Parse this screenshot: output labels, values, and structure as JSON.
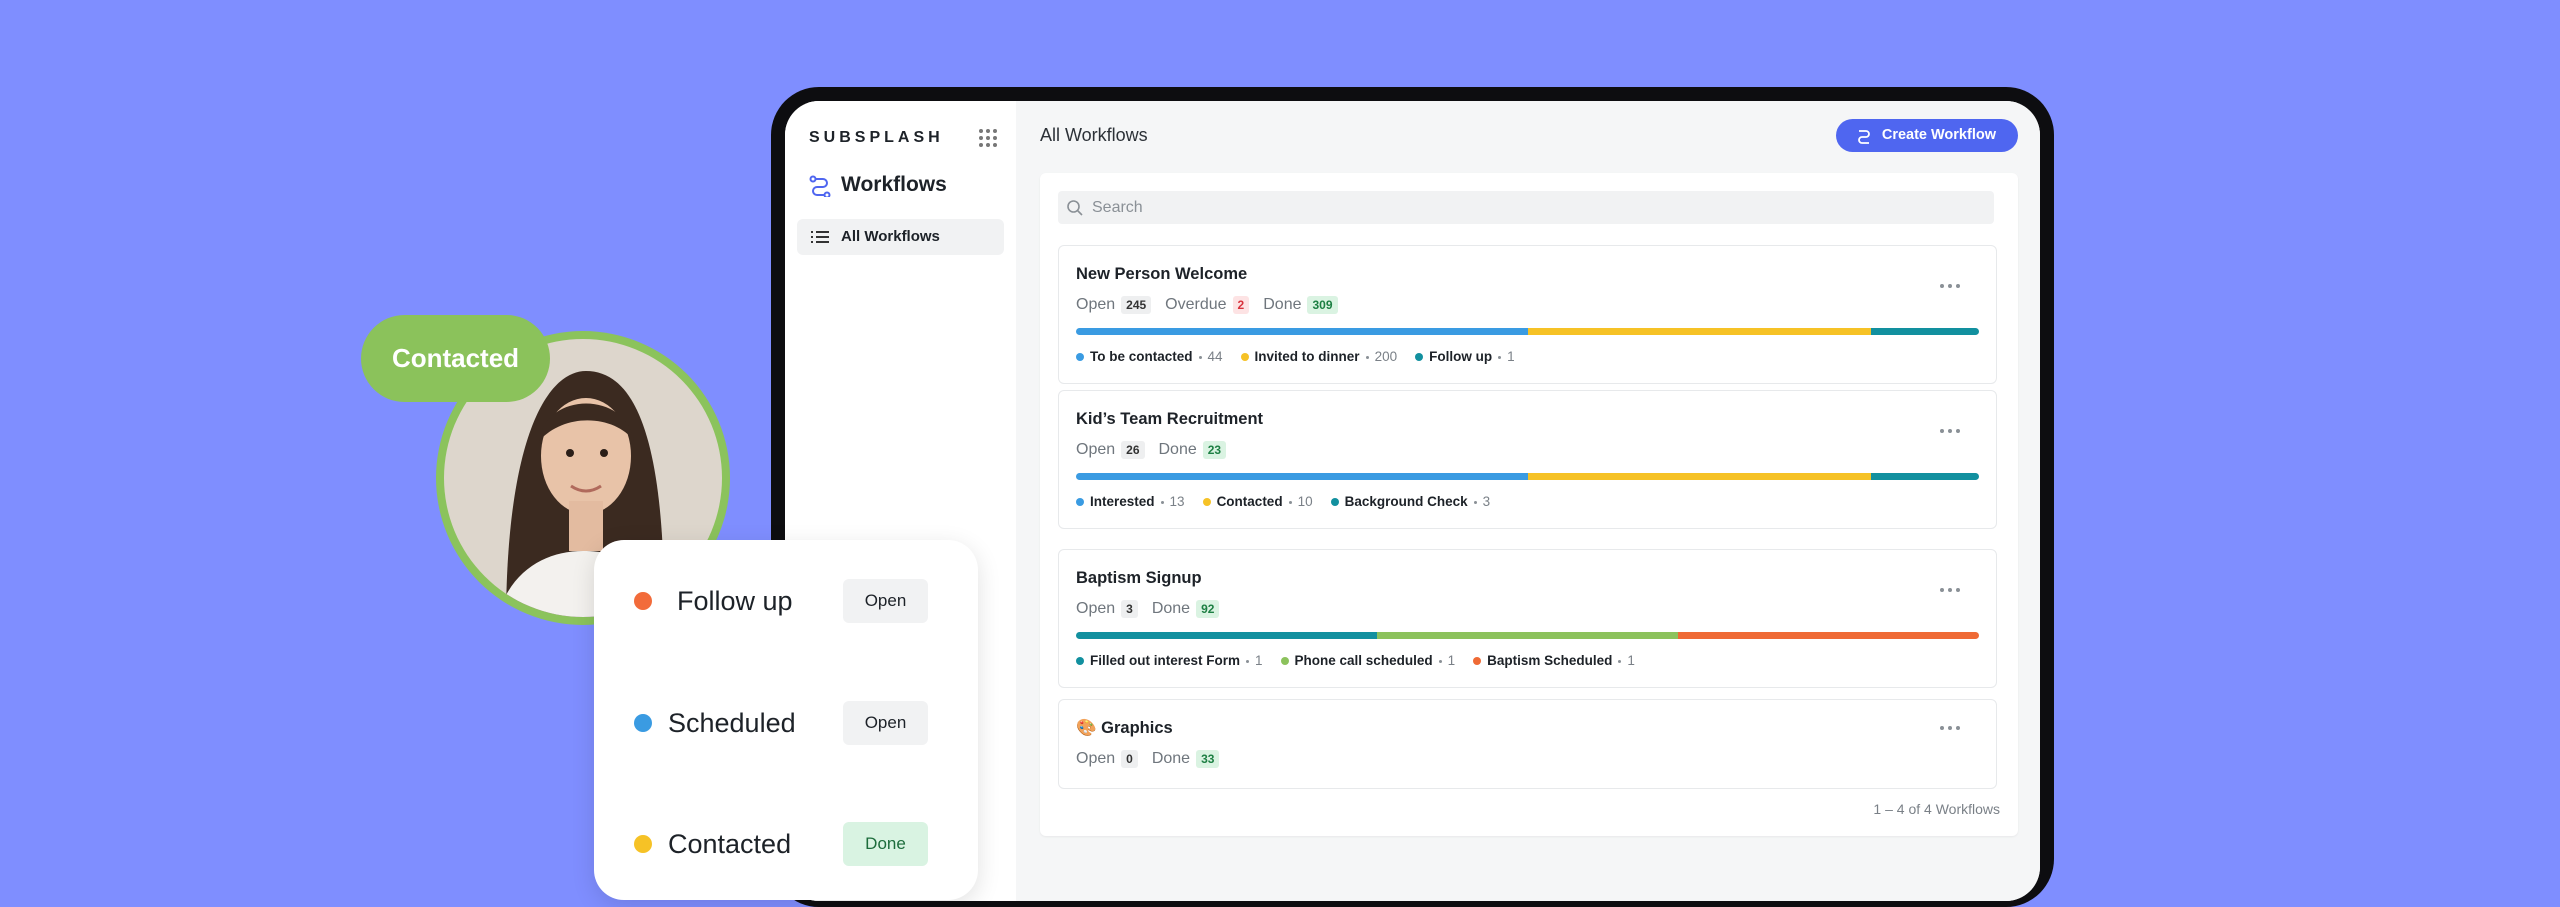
{
  "brand": "SUBSPLASH",
  "sidebar": {
    "title": "Workflows",
    "nav": [
      "All Workflows"
    ]
  },
  "header": {
    "title": "All Workflows",
    "button": "Create Workflow"
  },
  "search_placeholder": "Search",
  "workflows": [
    {
      "title": "New Person Welcome",
      "counts": [
        {
          "label": "Open",
          "value": 245,
          "tone": "gray"
        },
        {
          "label": "Overdue",
          "value": 2,
          "tone": "red"
        },
        {
          "label": "Done",
          "value": 309,
          "tone": "green"
        }
      ],
      "steps": [
        {
          "name": "To be contacted",
          "count": 44,
          "color": "#3a9be2"
        },
        {
          "name": "Invited to dinner",
          "count": 200,
          "color": "#f6c226"
        },
        {
          "name": "Follow up",
          "count": 1,
          "color": "#12909f"
        }
      ]
    },
    {
      "title": "Kid’s Team Recruitment",
      "counts": [
        {
          "label": "Open",
          "value": 26,
          "tone": "gray"
        },
        {
          "label": "Done",
          "value": 23,
          "tone": "green"
        }
      ],
      "steps": [
        {
          "name": "Interested",
          "count": 13,
          "color": "#3a9be2"
        },
        {
          "name": "Contacted",
          "count": 10,
          "color": "#f6c226"
        },
        {
          "name": "Background Check",
          "count": 3,
          "color": "#12909f"
        }
      ]
    },
    {
      "title": "Baptism Signup",
      "counts": [
        {
          "label": "Open",
          "value": 3,
          "tone": "gray"
        },
        {
          "label": "Done",
          "value": 92,
          "tone": "green"
        }
      ],
      "steps": [
        {
          "name": "Filled out interest Form",
          "count": 1,
          "color": "#12909f"
        },
        {
          "name": "Phone call scheduled",
          "count": 1,
          "color": "#8cc25c"
        },
        {
          "name": "Baptism Scheduled",
          "count": 1,
          "color": "#ef6a35"
        }
      ]
    },
    {
      "title": "Graphics",
      "icon": "🎨",
      "counts": [
        {
          "label": "Open",
          "value": 0,
          "tone": "gray"
        },
        {
          "label": "Done",
          "value": 33,
          "tone": "green"
        }
      ],
      "steps": []
    }
  ],
  "footer": "1 – 4 of 4 Workflows",
  "overlay": {
    "badge": "Contacted",
    "rows": [
      {
        "label": "Follow up",
        "status": "Open",
        "color": "#f26b3a",
        "done": false
      },
      {
        "label": "Scheduled",
        "status": "Open",
        "color": "#3a9be2",
        "done": false
      },
      {
        "label": "Contacted",
        "status": "Done",
        "color": "#f6c226",
        "done": true
      }
    ]
  }
}
